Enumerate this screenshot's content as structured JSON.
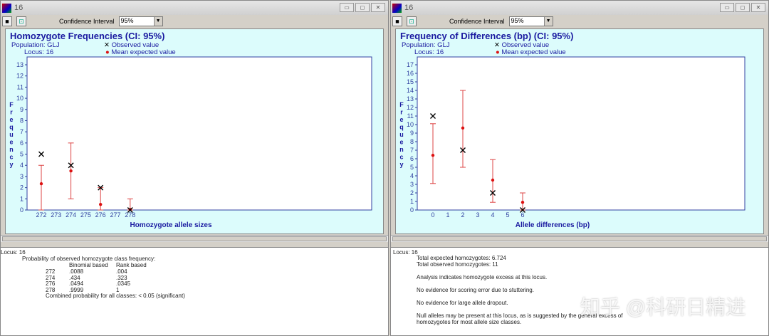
{
  "windows": [
    {
      "title": "16",
      "ci_label": "Confidence Interval",
      "ci_value": "95%",
      "chart_title": "Homozygote Frequencies  (CI: 95%)",
      "population": "Population: GLJ",
      "locus": "Locus: 16",
      "legend_obs": "Observed value",
      "legend_mean": "Mean expected value"
    },
    {
      "title": "16",
      "ci_label": "Confidence Interval",
      "ci_value": "95%",
      "chart_title": "Frequency of Differences (bp)  (CI: 95%)",
      "population": "Population: GLJ",
      "locus": "Locus: 16",
      "legend_obs": "Observed value",
      "legend_mean": "Mean expected value"
    }
  ],
  "chart_data": [
    {
      "type": "scatter",
      "title": "Homozygote Frequencies  (CI: 95%)",
      "xlabel": "Homozygote allele sizes",
      "ylabel": "Frequency",
      "xticks": [
        "272",
        "273",
        "274",
        "275",
        "276",
        "277",
        "278"
      ],
      "xlim": [
        272,
        278
      ],
      "ylim": [
        0,
        13
      ],
      "points": [
        {
          "x": 272,
          "observed": 5,
          "mean": 2.35,
          "ci": [
            0,
            4
          ]
        },
        {
          "x": 274,
          "observed": 4,
          "mean": 3.5,
          "ci": [
            1,
            6
          ]
        },
        {
          "x": 276,
          "observed": 2,
          "mean": 0.5,
          "ci": [
            0,
            2
          ]
        },
        {
          "x": 278,
          "observed": 0,
          "mean": 0.05,
          "ci": [
            0,
            1
          ]
        }
      ],
      "colors": {
        "observed": "#000000",
        "mean": "#dd1111",
        "ci": "#dd4444"
      }
    },
    {
      "type": "scatter",
      "title": "Frequency of Differences (bp)  (CI: 95%)",
      "xlabel": "Allele differences (bp)",
      "ylabel": "Frequency",
      "xticks": [
        "0",
        "1",
        "2",
        "3",
        "4",
        "5",
        "6"
      ],
      "xlim": [
        0,
        6
      ],
      "ylim": [
        0,
        17
      ],
      "points": [
        {
          "x": 0,
          "observed": 11,
          "mean": 6.4,
          "ci": [
            3.1,
            10.1
          ]
        },
        {
          "x": 2,
          "observed": 7,
          "mean": 9.6,
          "ci": [
            5,
            14
          ]
        },
        {
          "x": 4,
          "observed": 2,
          "mean": 3.5,
          "ci": [
            0.9,
            5.9
          ]
        },
        {
          "x": 6,
          "observed": 0,
          "mean": 0.9,
          "ci": [
            0,
            2
          ]
        }
      ],
      "colors": {
        "observed": "#000000",
        "mean": "#dd1111",
        "ci": "#dd4444"
      }
    }
  ],
  "left_text": {
    "locus": "Locus: 16",
    "heading": "Probability of observed homozygote class frequency:",
    "col1": "Binomial based",
    "col2": "Rank based",
    "rows": [
      [
        "272",
        ".0088",
        ".004"
      ],
      [
        "274",
        ".434",
        ".323"
      ],
      [
        "276",
        ".0494",
        ".0345"
      ],
      [
        "278",
        ".9999",
        "1"
      ]
    ],
    "combined": "Combined probability for all classes: < 0.05 (significant)"
  },
  "right_text": {
    "locus": "Locus: 16",
    "expected": "Total expected homozygotes: 6.724",
    "observed": "Total observed homozygotes: 11",
    "l1": "Analysis indicates homozygote excess at this locus.",
    "l2": "No evidence for scoring error due to stuttering.",
    "l3": "No evidence for large allele dropout.",
    "l4a": "Null alleles may be present at this locus, as is suggested by the general excess of",
    "l4b": "homozygotes for most allele size classes."
  },
  "watermark": "知乎 @科研日精进"
}
